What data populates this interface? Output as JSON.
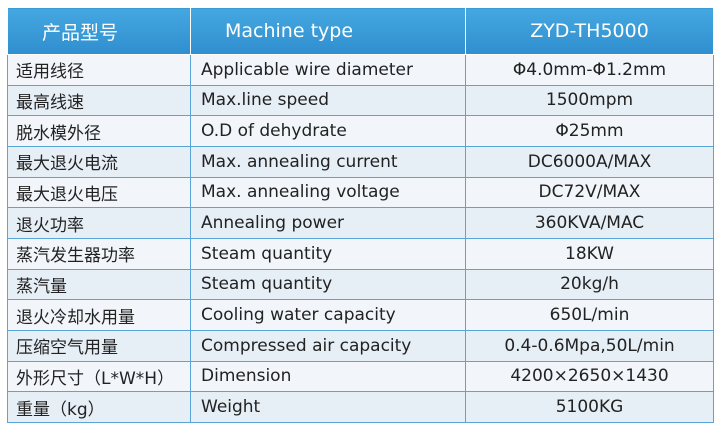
{
  "table": {
    "header": [
      "产品型号",
      "Machine type",
      "ZYD-TH5000"
    ],
    "rows": [
      [
        "适用线径",
        "Applicable wire diameter",
        "Φ4.0mm-Φ1.2mm"
      ],
      [
        "最高线速",
        "Max.line speed",
        "1500mpm"
      ],
      [
        "脱水模外径",
        "O.D of dehydrate",
        "Φ25mm"
      ],
      [
        "最大退火电流",
        "Max. annealing current",
        "DC6000A/MAX"
      ],
      [
        "最大退火电压",
        "Max. annealing voltage",
        "DC72V/MAX"
      ],
      [
        "退火功率",
        "Annealing power",
        "360KVA/MAC"
      ],
      [
        "蒸汽发生器功率",
        "Steam quantity",
        "18KW"
      ],
      [
        "蒸汽量",
        "Steam quantity",
        "20kg/h"
      ],
      [
        "退火冷却水用量",
        "Cooling water capacity",
        "650L/min"
      ],
      [
        "压缩空气用量",
        "Compressed air capacity",
        "0.4-0.6Mpa,50L/min"
      ],
      [
        "外形尺寸（L*W*H）",
        "Dimension",
        "4200×2650×1430"
      ],
      [
        "重量（kg）",
        "Weight",
        "5100KG"
      ]
    ]
  }
}
